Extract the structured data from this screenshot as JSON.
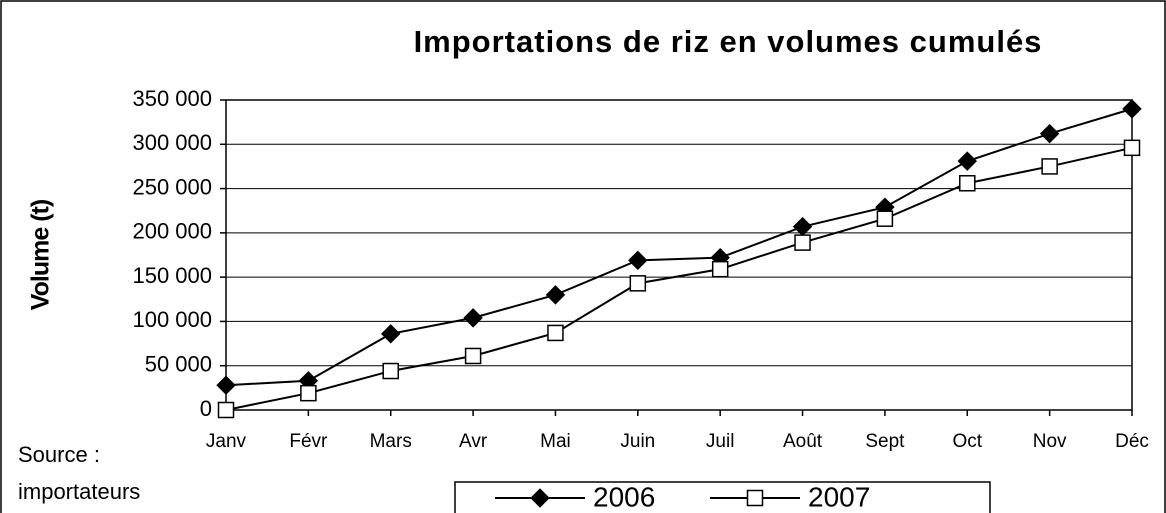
{
  "chart_data": {
    "type": "line",
    "title": "Importations de riz en volumes cumulés",
    "y_label": "Volume (t)",
    "source": [
      "Source :",
      "importateurs"
    ],
    "categories": [
      "Janv",
      "Févr",
      "Mars",
      "Avr",
      "Mai",
      "Juin",
      "Juil",
      "Août",
      "Sept",
      "Oct",
      "Nov",
      "Déc"
    ],
    "series": [
      {
        "name": "2006",
        "color": "#000000",
        "marker": "diamond",
        "values": [
          28000,
          33000,
          86000,
          104000,
          130000,
          169000,
          172000,
          207000,
          229000,
          281000,
          312000,
          340000
        ]
      },
      {
        "name": "2007",
        "color": "#000000",
        "marker": "square",
        "values": [
          0,
          19000,
          44000,
          61000,
          87000,
          143000,
          159000,
          189000,
          216000,
          256000,
          275000,
          296000
        ]
      }
    ],
    "ylim": [
      0,
      350000
    ],
    "yticks": [
      0,
      {
        "value": 50000,
        "label": "50 000"
      },
      {
        "value": 100000,
        "label": "100 000"
      },
      {
        "value": 150000,
        "label": "150 000"
      },
      {
        "value": 200000,
        "label": "200 000"
      },
      {
        "value": 250000,
        "label": "250 000"
      },
      {
        "value": 300000,
        "label": "300 000"
      },
      {
        "value": 350000,
        "label": "350 000"
      }
    ],
    "grid": true,
    "legend": "bottom"
  }
}
